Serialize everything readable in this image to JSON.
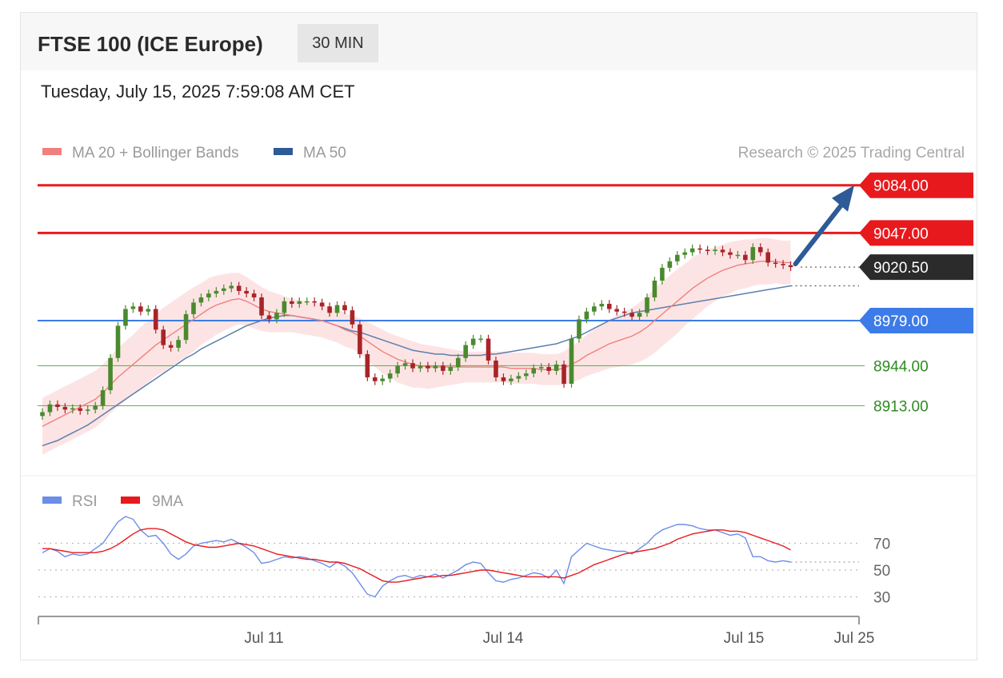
{
  "header": {
    "title": "FTSE 100 (ICE Europe)",
    "timeframe": "30 MIN"
  },
  "timestamp": "Tuesday, July 15, 2025 7:59:08 AM CET",
  "credit": "Research © 2025 Trading Central",
  "colors": {
    "resistance": "#e8191d",
    "pivot": "#3d7be8",
    "support": "#5fb85c",
    "last": "#2b2b2b",
    "ma20": "#f0807e",
    "band": "#fde1e1",
    "ma50": "#2e5a98",
    "up": "#4a8a2e",
    "down": "#a82428",
    "rsi": "#6c8de8",
    "rsi_ma": "#e8191d"
  },
  "chart_data": [
    {
      "type": "candlestick",
      "legend": [
        {
          "name": "MA 20 + Bollinger Bands"
        },
        {
          "name": "MA 50"
        }
      ],
      "levels": [
        {
          "value": 9084.0,
          "label": "9084.00",
          "kind": "resistance"
        },
        {
          "value": 9047.0,
          "label": "9047.00",
          "kind": "resistance"
        },
        {
          "value": 9020.5,
          "label": "9020.50",
          "kind": "last"
        },
        {
          "value": 8979.0,
          "label": "8979.00",
          "kind": "pivot"
        },
        {
          "value": 8944.0,
          "label": "8944.00",
          "kind": "support"
        },
        {
          "value": 8913.0,
          "label": "8913.00",
          "kind": "support"
        }
      ],
      "x_ticks": [
        "Jul 11",
        "Jul 14",
        "Jul 15",
        "Jul 25"
      ],
      "close": [
        8908,
        8914,
        8912,
        8910,
        8911,
        8909,
        8910,
        8913,
        8925,
        8950,
        8975,
        8988,
        8990,
        8986,
        8988,
        8972,
        8960,
        8958,
        8964,
        8984,
        8993,
        8997,
        9000,
        9002,
        9004,
        9006,
        9002,
        9000,
        8997,
        8983,
        8980,
        8985,
        8994,
        8992,
        8994,
        8994,
        8993,
        8990,
        8985,
        8991,
        8987,
        8976,
        8953,
        8935,
        8932,
        8934,
        8938,
        8944,
        8946,
        8942,
        8944,
        8942,
        8944,
        8940,
        8943,
        8950,
        8960,
        8965,
        8965,
        8948,
        8935,
        8932,
        8934,
        8936,
        8938,
        8942,
        8943,
        8940,
        8945,
        8930,
        8965,
        8980,
        8986,
        8990,
        8992,
        8988,
        8986,
        8985,
        8982,
        8985,
        8997,
        9010,
        9020,
        9025,
        9030,
        9032,
        9035,
        9034,
        9033,
        9034,
        9032,
        9030,
        9030,
        9026,
        9036,
        9032,
        9024,
        9023,
        9022,
        9020.5
      ],
      "ma20": [
        8897,
        8900,
        8903,
        8906,
        8909,
        8912,
        8915,
        8918,
        8923,
        8929,
        8935,
        8940,
        8945,
        8950,
        8955,
        8960,
        8964,
        8968,
        8972,
        8976,
        8980,
        8984,
        8988,
        8991,
        8993,
        8995,
        8996,
        8994,
        8991,
        8988,
        8986,
        8985,
        8984,
        8983,
        8982,
        8981,
        8980,
        8979,
        8977,
        8975,
        8972,
        8970,
        8967,
        8963,
        8959,
        8955,
        8952,
        8949,
        8947,
        8945,
        8944,
        8943,
        8943,
        8943,
        8943,
        8943,
        8943,
        8943,
        8943,
        8943,
        8943,
        8943,
        8942,
        8942,
        8942,
        8942,
        8941,
        8941,
        8941,
        8942,
        8945,
        8948,
        8952,
        8955,
        8958,
        8961,
        8963,
        8965,
        8967,
        8970,
        8974,
        8979,
        8984,
        8989,
        8994,
        8999,
        9004,
        9008,
        9012,
        9015,
        9018,
        9020,
        9022,
        9023,
        9024,
        9025,
        9025,
        9025,
        9024,
        9024
      ],
      "ma50": [
        8882,
        8884,
        8886,
        8889,
        8892,
        8895,
        8898,
        8902,
        8906,
        8910,
        8914,
        8918,
        8922,
        8926,
        8930,
        8934,
        8938,
        8942,
        8946,
        8950,
        8953,
        8957,
        8960,
        8963,
        8966,
        8969,
        8972,
        8975,
        8977,
        8979,
        8981,
        8982,
        8983,
        8983,
        8982,
        8981,
        8980,
        8979,
        8977,
        8975,
        8973,
        8971,
        8970,
        8968,
        8966,
        8964,
        8962,
        8960,
        8958,
        8956,
        8955,
        8954,
        8953,
        8953,
        8952,
        8952,
        8952,
        8952,
        8952,
        8953,
        8953,
        8954,
        8955,
        8956,
        8957,
        8958,
        8959,
        8960,
        8961,
        8963,
        8965,
        8967,
        8970,
        8973,
        8976,
        8979,
        8981,
        8983,
        8985,
        8986,
        8987,
        8988,
        8989,
        8990,
        8991,
        8992,
        8993,
        8994,
        8995,
        8996,
        8997,
        8998,
        8999,
        9000,
        9001,
        9002,
        9003,
        9004,
        9005,
        9006
      ],
      "bb_width": [
        22,
        22,
        22,
        22,
        22,
        22,
        22,
        22,
        22,
        22,
        23,
        23,
        23,
        24,
        24,
        24,
        25,
        25,
        25,
        25,
        25,
        24,
        24,
        23,
        22,
        21,
        20,
        19,
        18,
        17,
        16,
        15,
        14,
        13,
        13,
        13,
        13,
        13,
        13,
        13,
        13,
        13,
        14,
        15,
        16,
        17,
        17,
        18,
        18,
        18,
        17,
        17,
        16,
        15,
        14,
        13,
        12,
        12,
        12,
        12,
        12,
        12,
        12,
        12,
        12,
        12,
        12,
        12,
        12,
        13,
        14,
        15,
        16,
        17,
        18,
        19,
        20,
        21,
        22,
        23,
        24,
        25,
        25,
        25,
        25,
        24,
        24,
        23,
        22,
        21,
        20,
        20,
        19,
        19,
        18,
        18,
        18,
        17,
        17,
        17
      ],
      "forecast": {
        "from": 9020.5,
        "to": 9084.0
      }
    },
    {
      "type": "line",
      "legend": [
        {
          "name": "RSI"
        },
        {
          "name": "9MA"
        }
      ],
      "y_ticks": [
        70,
        50,
        30
      ],
      "rsi": [
        63,
        66,
        64,
        60,
        62,
        61,
        62,
        66,
        70,
        78,
        86,
        90,
        88,
        80,
        75,
        76,
        70,
        62,
        58,
        62,
        68,
        70,
        71,
        72,
        71,
        73,
        70,
        67,
        63,
        55,
        56,
        58,
        60,
        59,
        60,
        59,
        57,
        55,
        52,
        56,
        53,
        48,
        40,
        32,
        30,
        38,
        42,
        45,
        46,
        44,
        46,
        45,
        47,
        44,
        47,
        50,
        54,
        56,
        55,
        48,
        42,
        41,
        43,
        44,
        46,
        48,
        47,
        44,
        50,
        40,
        60,
        65,
        70,
        68,
        66,
        65,
        64,
        64,
        62,
        66,
        70,
        76,
        80,
        82,
        84,
        84,
        83,
        81,
        80,
        80,
        78,
        76,
        77,
        74,
        60,
        60,
        57,
        56,
        57,
        56
      ],
      "rsi_ma": [
        66,
        66,
        65,
        64,
        63,
        63,
        63,
        63,
        64,
        66,
        69,
        73,
        77,
        80,
        81,
        81,
        80,
        77,
        74,
        71,
        69,
        68,
        67,
        67,
        68,
        69,
        70,
        69,
        68,
        66,
        64,
        62,
        61,
        60,
        59,
        58,
        58,
        57,
        56,
        56,
        55,
        53,
        51,
        48,
        45,
        42,
        41,
        41,
        42,
        43,
        44,
        45,
        45,
        46,
        46,
        47,
        48,
        49,
        50,
        50,
        49,
        48,
        47,
        46,
        45,
        45,
        45,
        45,
        45,
        44,
        46,
        48,
        51,
        54,
        56,
        58,
        60,
        62,
        63,
        64,
        65,
        66,
        68,
        70,
        73,
        75,
        77,
        78,
        79,
        80,
        80,
        79,
        79,
        78,
        76,
        74,
        72,
        70,
        68,
        65
      ]
    }
  ]
}
